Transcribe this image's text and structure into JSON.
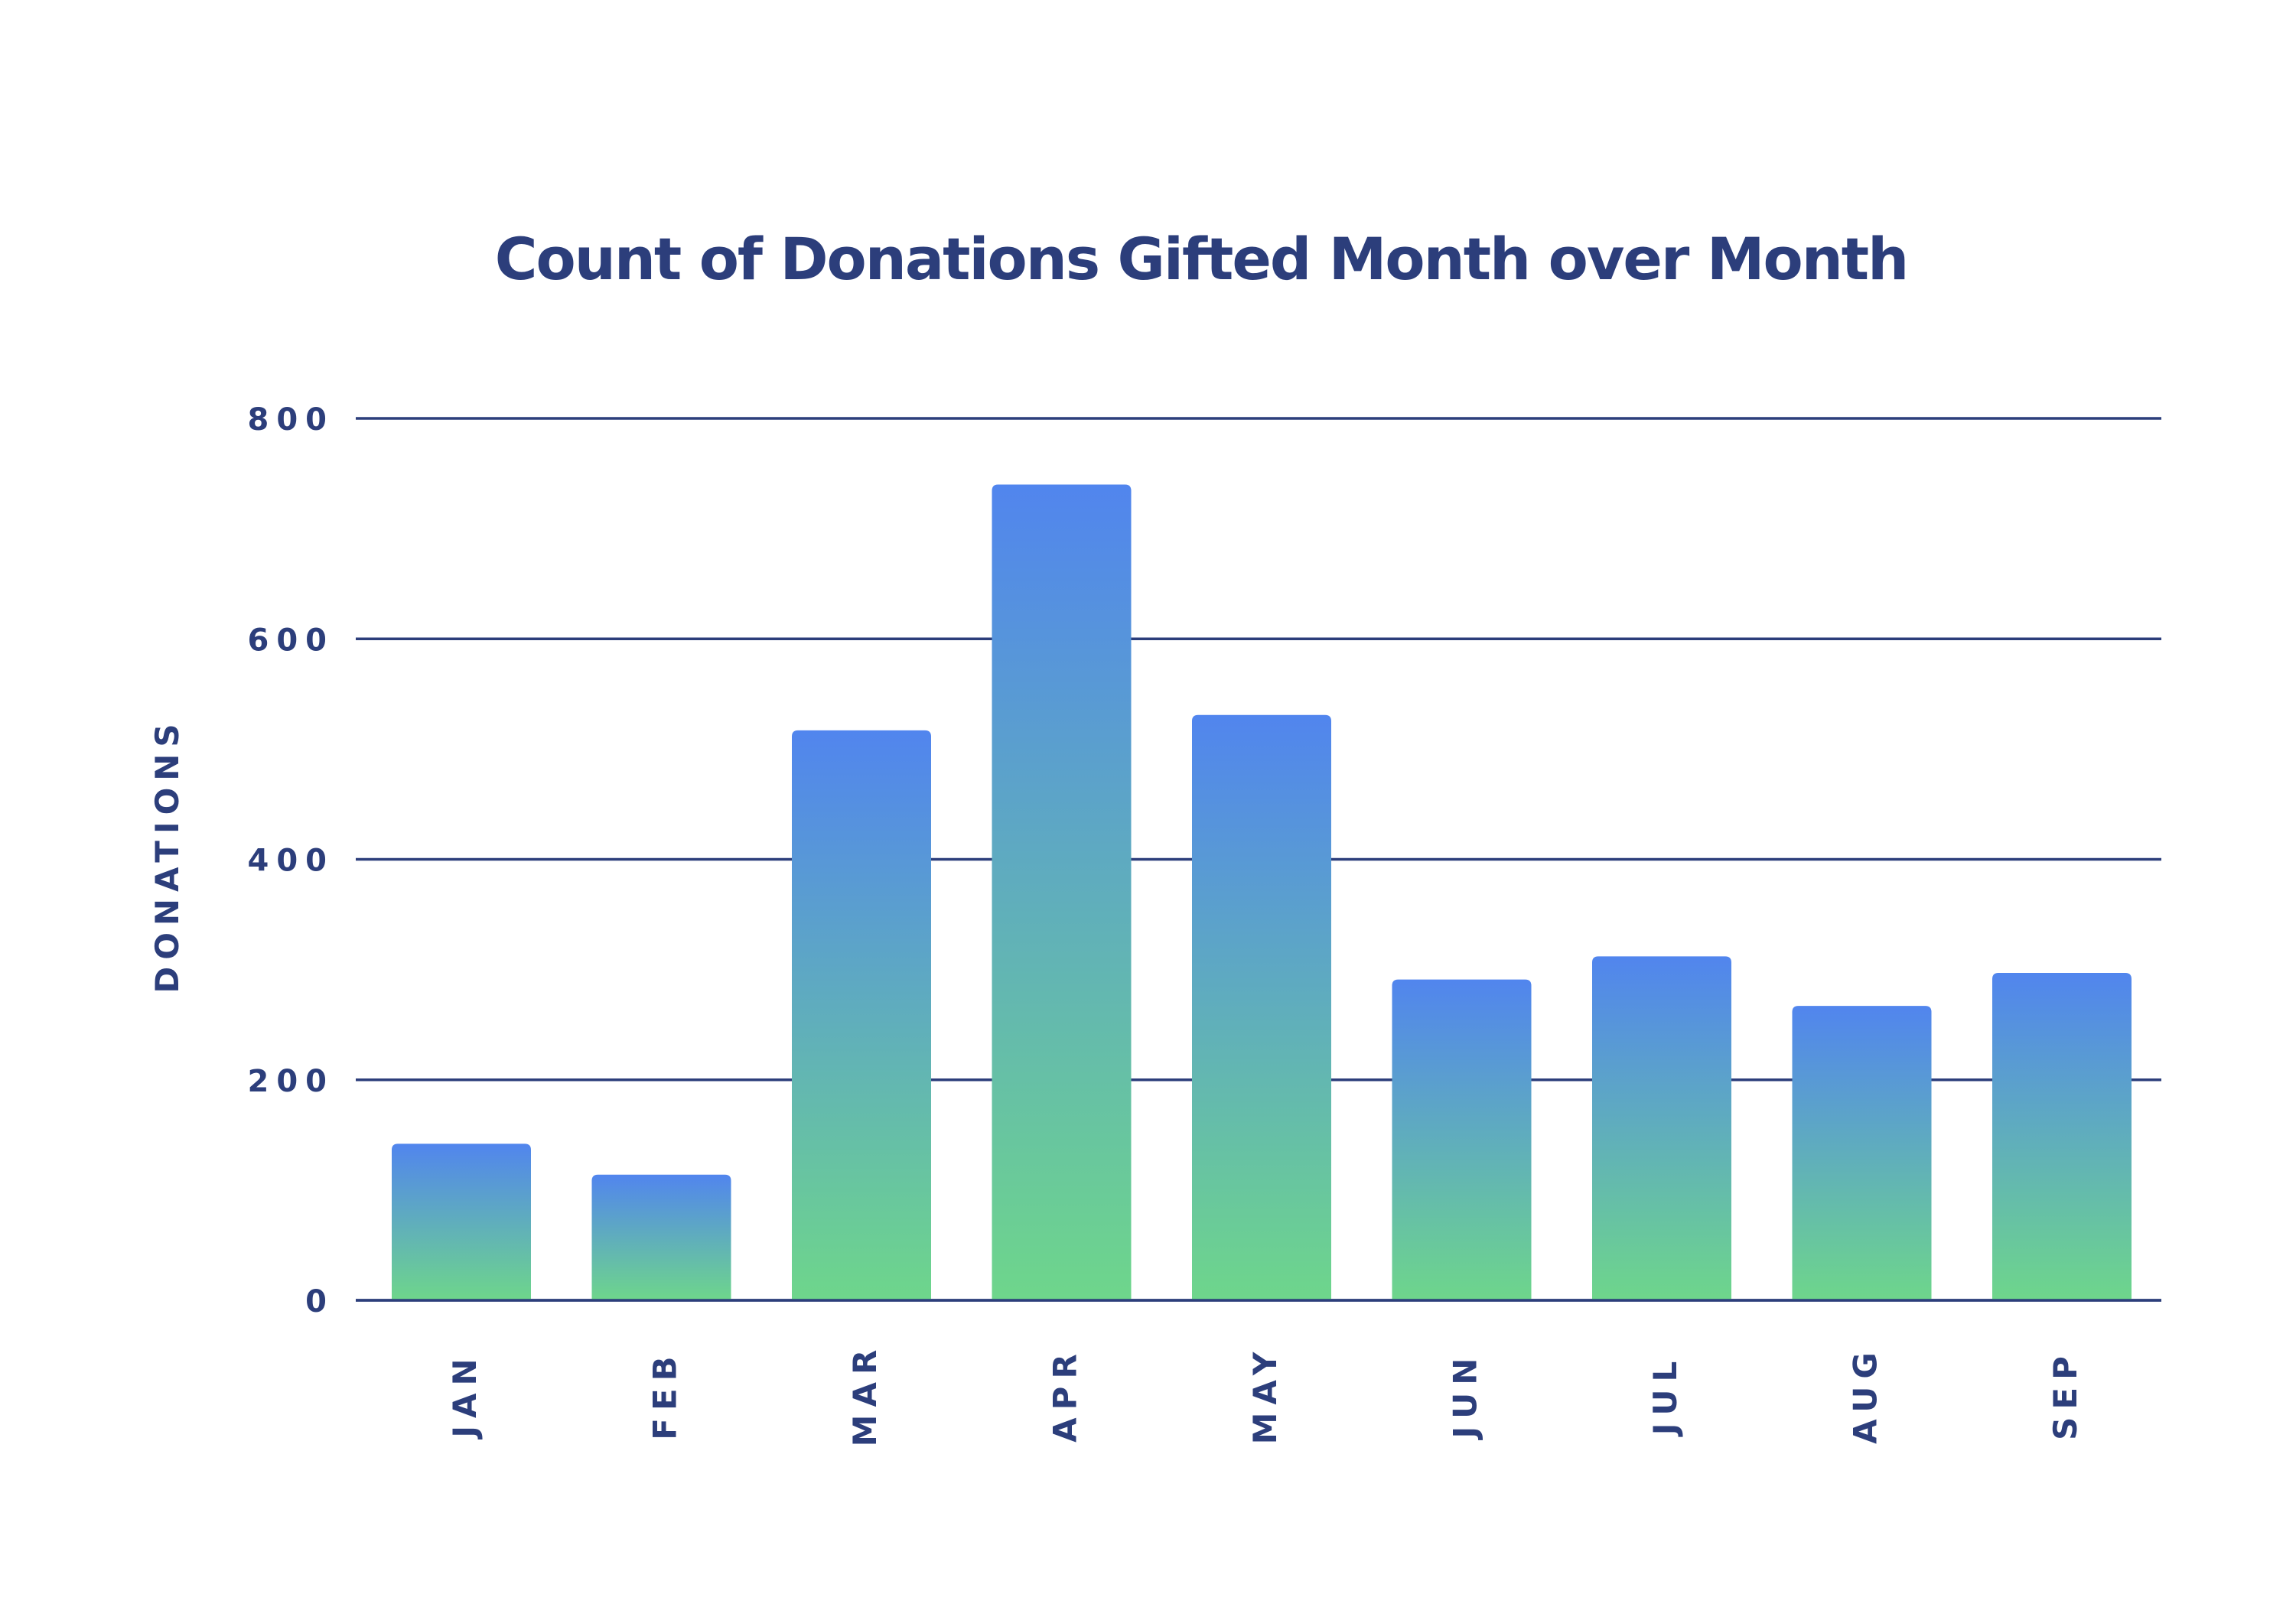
{
  "colors": {
    "text": "#2c3e7b",
    "grid": "#2c3e7b",
    "bar_top": "#5185ee",
    "bar_bottom": "#6ed68b",
    "background": "#ffffff"
  },
  "chart_data": {
    "type": "bar",
    "title": "Count of Donations Gifted Month over Month",
    "xlabel": "",
    "ylabel": "DONATIONS",
    "categories": [
      "JAN",
      "FEB",
      "MAR",
      "APR",
      "MAY",
      "JUN",
      "JUL",
      "AUG",
      "SEP"
    ],
    "values": [
      142,
      114,
      517,
      740,
      531,
      291,
      312,
      267,
      297
    ],
    "ylim": [
      0,
      800
    ],
    "yticks": [
      0,
      200,
      400,
      600,
      800
    ],
    "ytick_labels": [
      "0",
      "200",
      "400",
      "600",
      "800"
    ],
    "grid": true,
    "legend": "none",
    "category_label_orientation": "vertical"
  }
}
